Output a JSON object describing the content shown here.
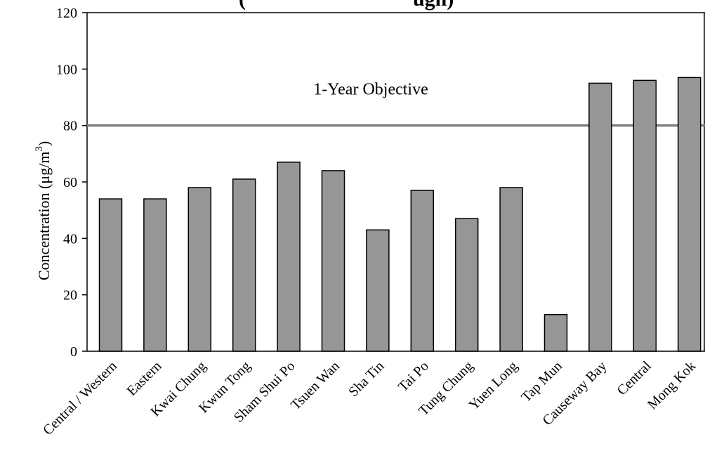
{
  "chart_data": {
    "type": "bar",
    "title": "(",
    "title_suffix": "ugh)",
    "ylabel": "Concentration (μg/m",
    "ylabel_sup": "3",
    "ylabel_close": ")",
    "xlabel": "",
    "ylim": [
      0,
      120
    ],
    "yticks": [
      0,
      20,
      40,
      60,
      80,
      100,
      120
    ],
    "categories": [
      "Central / Western",
      "Eastern",
      "Kwai Chung",
      "Kwun Tong",
      "Sham Shui Po",
      "Tsuen Wan",
      "Sha Tin",
      "Tai Po",
      "Tung Chung",
      "Yuen Long",
      "Tap Mun",
      "Causeway Bay",
      "Central",
      "Mong Kok"
    ],
    "values": [
      54,
      54,
      58,
      61,
      67,
      64,
      43,
      57,
      47,
      58,
      13,
      95,
      96,
      97
    ],
    "bar_color": "#969696",
    "reference_line": {
      "value": 80,
      "label": "1-Year Objective",
      "color": "#808080"
    },
    "grid": false
  }
}
